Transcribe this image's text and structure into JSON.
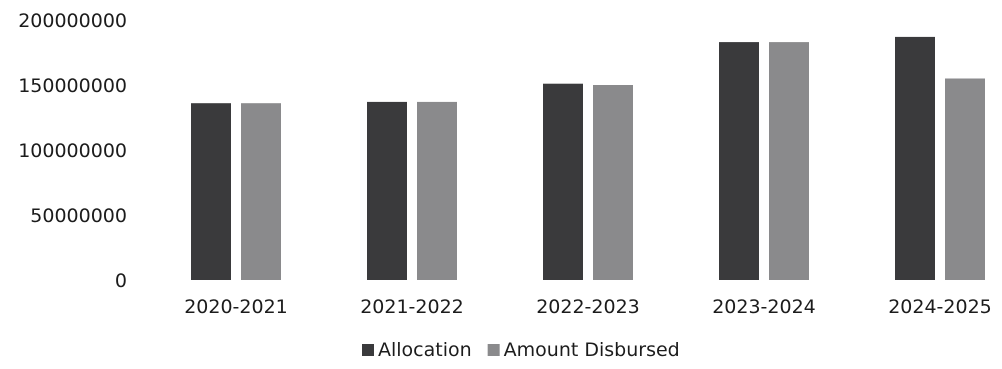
{
  "chart_data": {
    "type": "bar",
    "title": "",
    "xlabel": "",
    "ylabel": "",
    "categories": [
      "2020-2021",
      "2021-2022",
      "2022-2023",
      "2023-2024",
      "2024-2025"
    ],
    "series": [
      {
        "name": "Allocation",
        "color": "#3a3a3c",
        "values": [
          136000000,
          137000000,
          151000000,
          183000000,
          187000000
        ]
      },
      {
        "name": "Amount Disbursed",
        "color": "#8a8a8c",
        "values": [
          136000000,
          137000000,
          150000000,
          183000000,
          155000000
        ]
      }
    ],
    "ylim": [
      0,
      200000000
    ],
    "yticks": [
      "200000000",
      "150000000",
      "100000000",
      "50000000",
      "0"
    ],
    "grid": false,
    "legend_position": "bottom-center"
  }
}
